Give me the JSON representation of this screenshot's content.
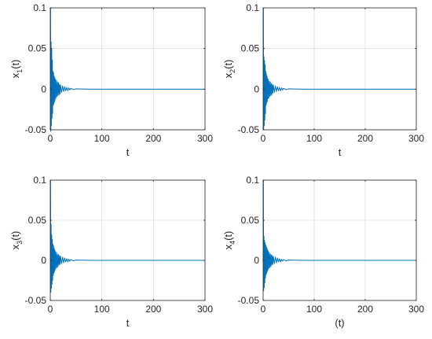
{
  "chart_data": [
    {
      "type": "line",
      "xlabel": "t",
      "ylabel_main": "x",
      "ylabel_sub": "1",
      "ylabel_tail": "(t)",
      "xlim": [
        0,
        300
      ],
      "ylim": [
        -0.05,
        0.1
      ],
      "xticks": [
        "0",
        "100",
        "200",
        "300"
      ],
      "yticks": [
        "-0.05",
        "0",
        "0.05",
        "0.1"
      ],
      "grid": true,
      "line_color": "#0072BD",
      "series": [
        {
          "x": [
            0,
            0.5,
            1.0,
            1.6,
            2.2,
            2.8,
            3.4,
            4.0,
            4.6,
            5.2,
            5.8,
            6.4,
            7.0,
            7.6,
            8.2,
            8.8,
            9.4,
            10,
            11,
            12,
            13,
            14,
            15,
            16,
            17,
            18,
            19,
            20,
            22,
            24,
            26,
            28,
            30,
            32,
            34,
            36,
            38,
            40,
            45,
            50,
            60,
            70,
            80,
            100,
            150,
            200,
            250,
            300
          ],
          "y": [
            0.1,
            0.1,
            -0.052,
            0.058,
            -0.045,
            0.05,
            -0.036,
            0.036,
            -0.03,
            0.022,
            -0.02,
            0.02,
            -0.018,
            0.016,
            -0.016,
            0.014,
            -0.013,
            0.012,
            -0.011,
            0.011,
            -0.009,
            0.009,
            -0.008,
            0.008,
            -0.007,
            0.006,
            -0.006,
            0.005,
            -0.004,
            0.004,
            -0.003,
            0.003,
            -0.002,
            0.002,
            -0.002,
            0.0015,
            -0.001,
            0.001,
            -0.0006,
            0.0004,
            0.0002,
            0.0001,
            0,
            0,
            0,
            0,
            0,
            0
          ]
        }
      ]
    },
    {
      "type": "line",
      "xlabel": "t",
      "ylabel_main": "x",
      "ylabel_sub": "2",
      "ylabel_tail": "(t)",
      "xlim": [
        0,
        300
      ],
      "ylim": [
        -0.05,
        0.1
      ],
      "xticks": [
        "0",
        "100",
        "200",
        "300"
      ],
      "yticks": [
        "-0.05",
        "0",
        "0.05",
        "0.1"
      ],
      "grid": true,
      "line_color": "#0072BD",
      "series": [
        {
          "x": [
            0,
            0.5,
            1.0,
            1.6,
            2.2,
            2.8,
            3.4,
            4.0,
            4.6,
            5.2,
            5.8,
            6.4,
            7.0,
            7.6,
            8.2,
            8.8,
            9.4,
            10,
            11,
            12,
            13,
            14,
            15,
            16,
            17,
            18,
            19,
            20,
            22,
            24,
            26,
            28,
            30,
            32,
            34,
            36,
            38,
            40,
            45,
            50,
            60,
            70,
            80,
            100,
            150,
            200,
            250,
            300
          ],
          "y": [
            0.1,
            0.1,
            -0.05,
            0.04,
            -0.045,
            0.035,
            -0.038,
            0.03,
            -0.03,
            0.022,
            -0.02,
            0.019,
            -0.017,
            0.016,
            -0.015,
            0.013,
            -0.012,
            0.012,
            -0.011,
            0.01,
            -0.009,
            0.009,
            -0.008,
            0.007,
            -0.007,
            0.006,
            -0.005,
            0.005,
            -0.004,
            0.004,
            -0.003,
            0.003,
            -0.002,
            0.002,
            -0.002,
            0.0015,
            -0.001,
            0.001,
            -0.0006,
            0.0004,
            0.0002,
            0.0001,
            0,
            0,
            0,
            0,
            0,
            0
          ]
        }
      ]
    },
    {
      "type": "line",
      "xlabel": "t",
      "ylabel_main": "x",
      "ylabel_sub": "3",
      "ylabel_tail": "(t)",
      "xlim": [
        0,
        300
      ],
      "ylim": [
        -0.05,
        0.1
      ],
      "xticks": [
        "0",
        "100",
        "200",
        "300"
      ],
      "yticks": [
        "-0.05",
        "0",
        "0.05",
        "0.1"
      ],
      "grid": true,
      "line_color": "#0072BD",
      "series": [
        {
          "x": [
            0,
            0.5,
            1.0,
            1.6,
            2.2,
            2.8,
            3.4,
            4.0,
            4.6,
            5.2,
            5.8,
            6.4,
            7.0,
            7.6,
            8.2,
            8.8,
            9.4,
            10,
            11,
            12,
            13,
            14,
            15,
            16,
            17,
            18,
            19,
            20,
            22,
            24,
            26,
            28,
            30,
            32,
            34,
            36,
            38,
            40,
            45,
            50,
            60,
            70,
            80,
            100,
            150,
            200,
            250,
            300
          ],
          "y": [
            0.1,
            0.1,
            -0.04,
            0.045,
            -0.035,
            0.032,
            -0.03,
            0.026,
            -0.025,
            0.02,
            -0.019,
            0.018,
            -0.016,
            0.015,
            -0.014,
            0.013,
            -0.012,
            0.011,
            -0.01,
            0.01,
            -0.009,
            0.008,
            -0.008,
            0.007,
            -0.006,
            0.006,
            -0.005,
            0.005,
            -0.004,
            0.004,
            -0.003,
            0.003,
            -0.002,
            0.002,
            -0.002,
            0.0015,
            -0.001,
            0.001,
            -0.0006,
            0.0004,
            0.0002,
            0.0001,
            0,
            0,
            0,
            0,
            0,
            0
          ]
        }
      ]
    },
    {
      "type": "line",
      "xlabel": "(t)",
      "ylabel_main": "x",
      "ylabel_sub": "4",
      "ylabel_tail": "(t)",
      "xlim": [
        0,
        300
      ],
      "ylim": [
        -0.05,
        0.1
      ],
      "xticks": [
        "0",
        "100",
        "200",
        "300"
      ],
      "yticks": [
        "-0.05",
        "0",
        "0.05",
        "0.1"
      ],
      "grid": true,
      "line_color": "#0072BD",
      "series": [
        {
          "x": [
            0,
            0.5,
            1.0,
            1.6,
            2.2,
            2.8,
            3.4,
            4.0,
            4.6,
            5.2,
            5.8,
            6.4,
            7.0,
            7.6,
            8.2,
            8.8,
            9.4,
            10,
            11,
            12,
            13,
            14,
            15,
            16,
            17,
            18,
            19,
            20,
            22,
            24,
            26,
            28,
            30,
            32,
            34,
            36,
            38,
            40,
            45,
            50,
            60,
            70,
            80,
            100,
            150,
            200,
            250,
            300
          ],
          "y": [
            0.1,
            0.1,
            -0.038,
            0.03,
            -0.034,
            0.025,
            -0.028,
            0.022,
            -0.022,
            0.019,
            -0.018,
            0.017,
            -0.016,
            0.015,
            -0.014,
            0.013,
            -0.012,
            0.011,
            -0.01,
            0.01,
            -0.009,
            0.008,
            -0.008,
            0.007,
            -0.006,
            0.006,
            -0.005,
            0.005,
            -0.004,
            0.004,
            -0.003,
            0.003,
            -0.002,
            0.002,
            -0.002,
            0.0015,
            -0.001,
            0.001,
            -0.0006,
            0.0004,
            0.0002,
            0.0001,
            0,
            0,
            0,
            0,
            0,
            0
          ]
        }
      ]
    }
  ]
}
